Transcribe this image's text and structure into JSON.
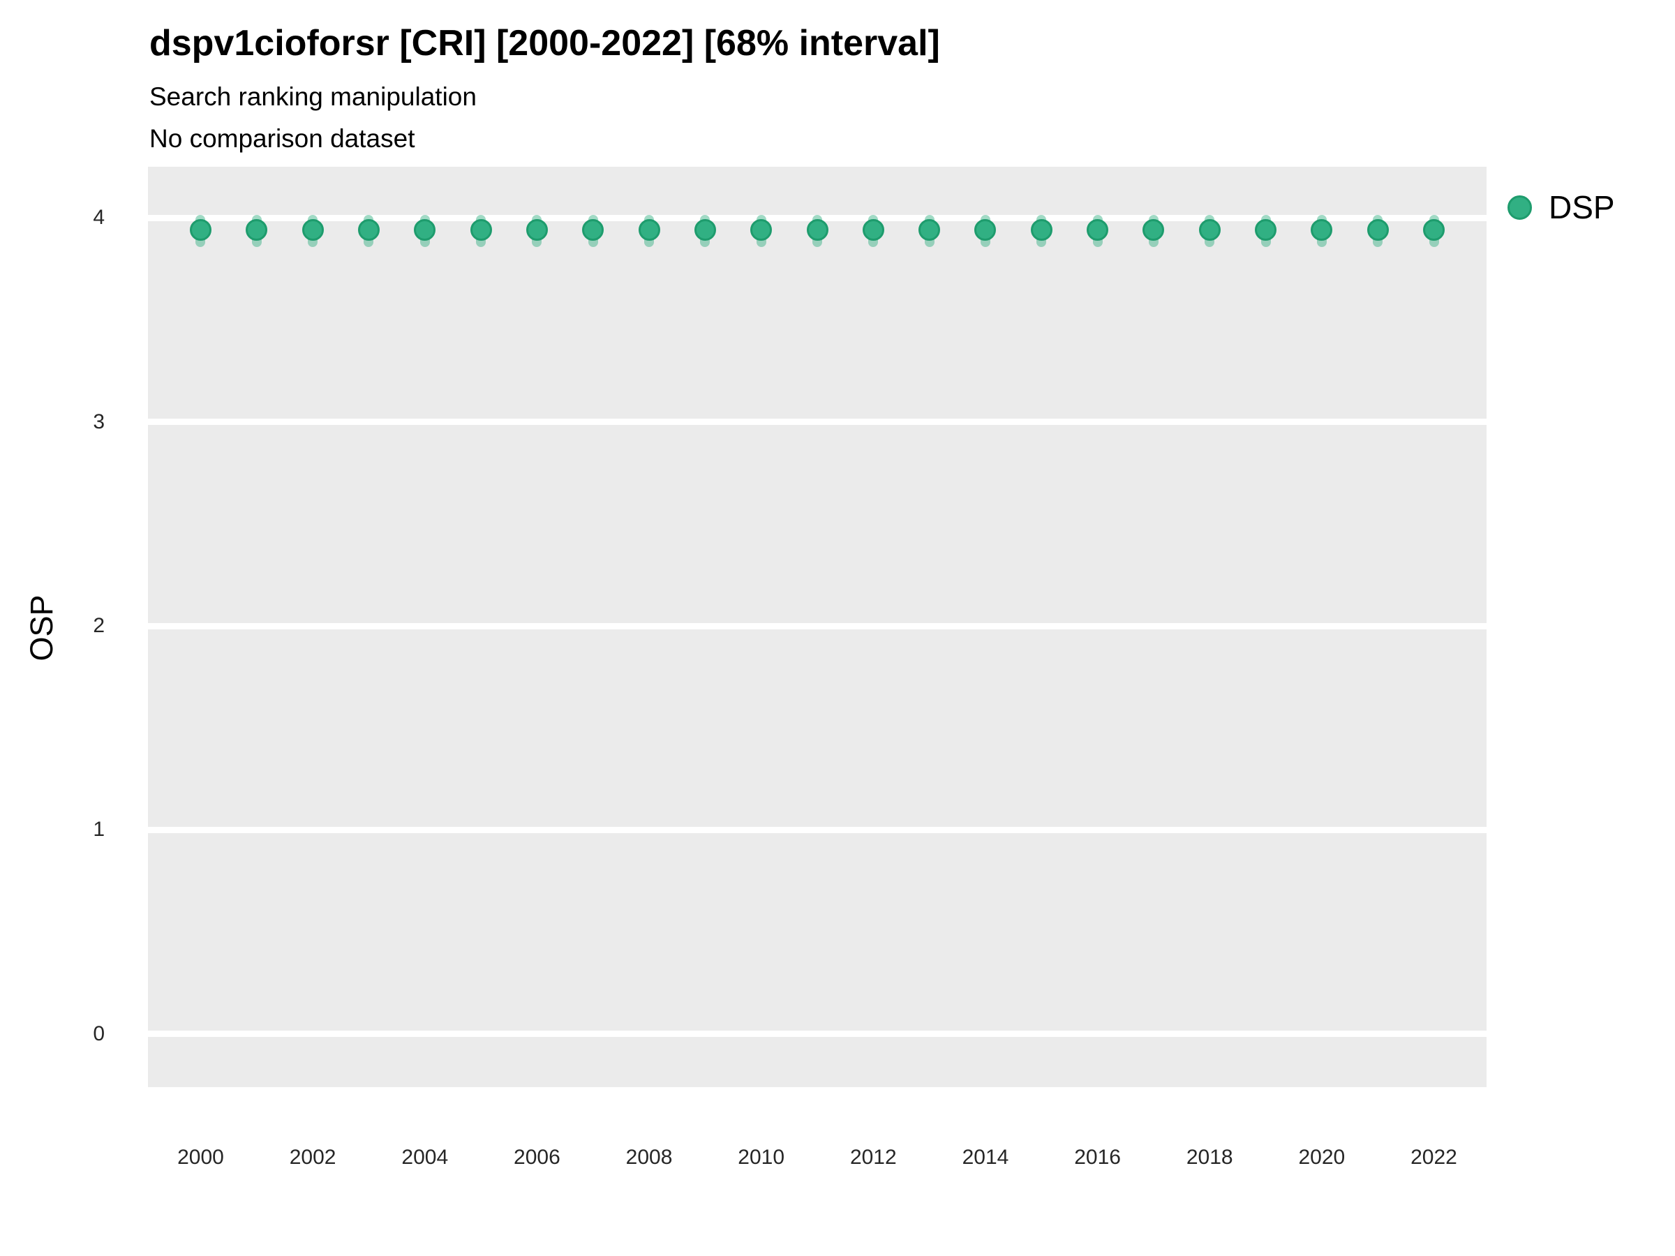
{
  "header": {
    "title": "dspv1cioforsr [CRI] [2000-2022] [68% interval]",
    "subtitle_line1": "Search ranking manipulation",
    "subtitle_line2": "No comparison dataset"
  },
  "axes": {
    "y_title": "OSP"
  },
  "legend": {
    "items": [
      {
        "label": "DSP",
        "marker": "circle-icon",
        "color": "#2FAD80"
      }
    ]
  },
  "colors": {
    "point_fill": "#31B083",
    "point_edge": "#1E9C6D",
    "interval_bar": "rgba(47, 172, 126, 0.45)",
    "panel_background": "#EBEBEB",
    "gridline": "#FFFFFF",
    "title_text": "#000000",
    "tick_text": "#262626"
  },
  "chart_data": {
    "type": "scatter",
    "title": "dspv1cioforsr [CRI] [2000-2022] [68% interval]",
    "subtitle": "Search ranking manipulation",
    "note": "No comparison dataset",
    "interval_label": "68% interval",
    "xlabel": "",
    "ylabel": "OSP",
    "legend_position": "right",
    "grid": "major-horizontal-white-on-gray",
    "x_ticks": [
      2000,
      2002,
      2004,
      2006,
      2008,
      2010,
      2012,
      2014,
      2016,
      2018,
      2020,
      2022
    ],
    "y_ticks": [
      0,
      1,
      2,
      3,
      4
    ],
    "xlim": [
      1999.06,
      2022.94
    ],
    "ylim": [
      -0.26,
      4.25
    ],
    "series": [
      {
        "name": "DSP",
        "x": [
          2000,
          2001,
          2002,
          2003,
          2004,
          2005,
          2006,
          2007,
          2008,
          2009,
          2010,
          2011,
          2012,
          2013,
          2014,
          2015,
          2016,
          2017,
          2018,
          2019,
          2020,
          2021,
          2022
        ],
        "y": [
          3.94,
          3.94,
          3.94,
          3.94,
          3.94,
          3.94,
          3.94,
          3.94,
          3.94,
          3.94,
          3.94,
          3.94,
          3.94,
          3.94,
          3.94,
          3.94,
          3.94,
          3.94,
          3.94,
          3.94,
          3.94,
          3.94,
          3.94
        ],
        "interval_low": [
          3.88,
          3.88,
          3.88,
          3.88,
          3.88,
          3.88,
          3.88,
          3.88,
          3.88,
          3.88,
          3.88,
          3.88,
          3.88,
          3.88,
          3.88,
          3.88,
          3.88,
          3.88,
          3.88,
          3.88,
          3.88,
          3.88,
          3.88
        ],
        "interval_high": [
          3.99,
          3.99,
          3.99,
          3.99,
          3.99,
          3.99,
          3.99,
          3.99,
          3.99,
          3.99,
          3.99,
          3.99,
          3.99,
          3.99,
          3.99,
          3.99,
          3.99,
          3.99,
          3.99,
          3.99,
          3.99,
          3.99,
          3.99
        ]
      }
    ]
  }
}
